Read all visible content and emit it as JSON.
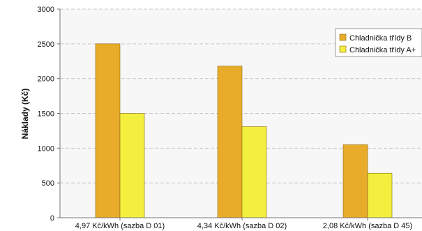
{
  "chart_data": {
    "type": "bar",
    "title": "",
    "xlabel": "",
    "ylabel": "Náklady (Kč)",
    "categories": [
      "4,97 Kč/kWh (sazba D 01)",
      "4,34 Kč/kWh (sazba D 02)",
      "2,08 Kč/kWh (sazba D 45)"
    ],
    "series": [
      {
        "name": "Chladnička třídy B",
        "values": [
          2500,
          2180,
          1050
        ],
        "color": "#e8ac2a"
      },
      {
        "name": "Chladnička třídy A+",
        "values": [
          1500,
          1310,
          640
        ],
        "color": "#f2ef3e"
      }
    ],
    "ylim": [
      0,
      3000
    ],
    "yticks": [
      0,
      500,
      1000,
      1500,
      2000,
      2500,
      3000
    ],
    "grid": true,
    "legend_position": "top-right",
    "plot_background": "#f7f7f7"
  }
}
